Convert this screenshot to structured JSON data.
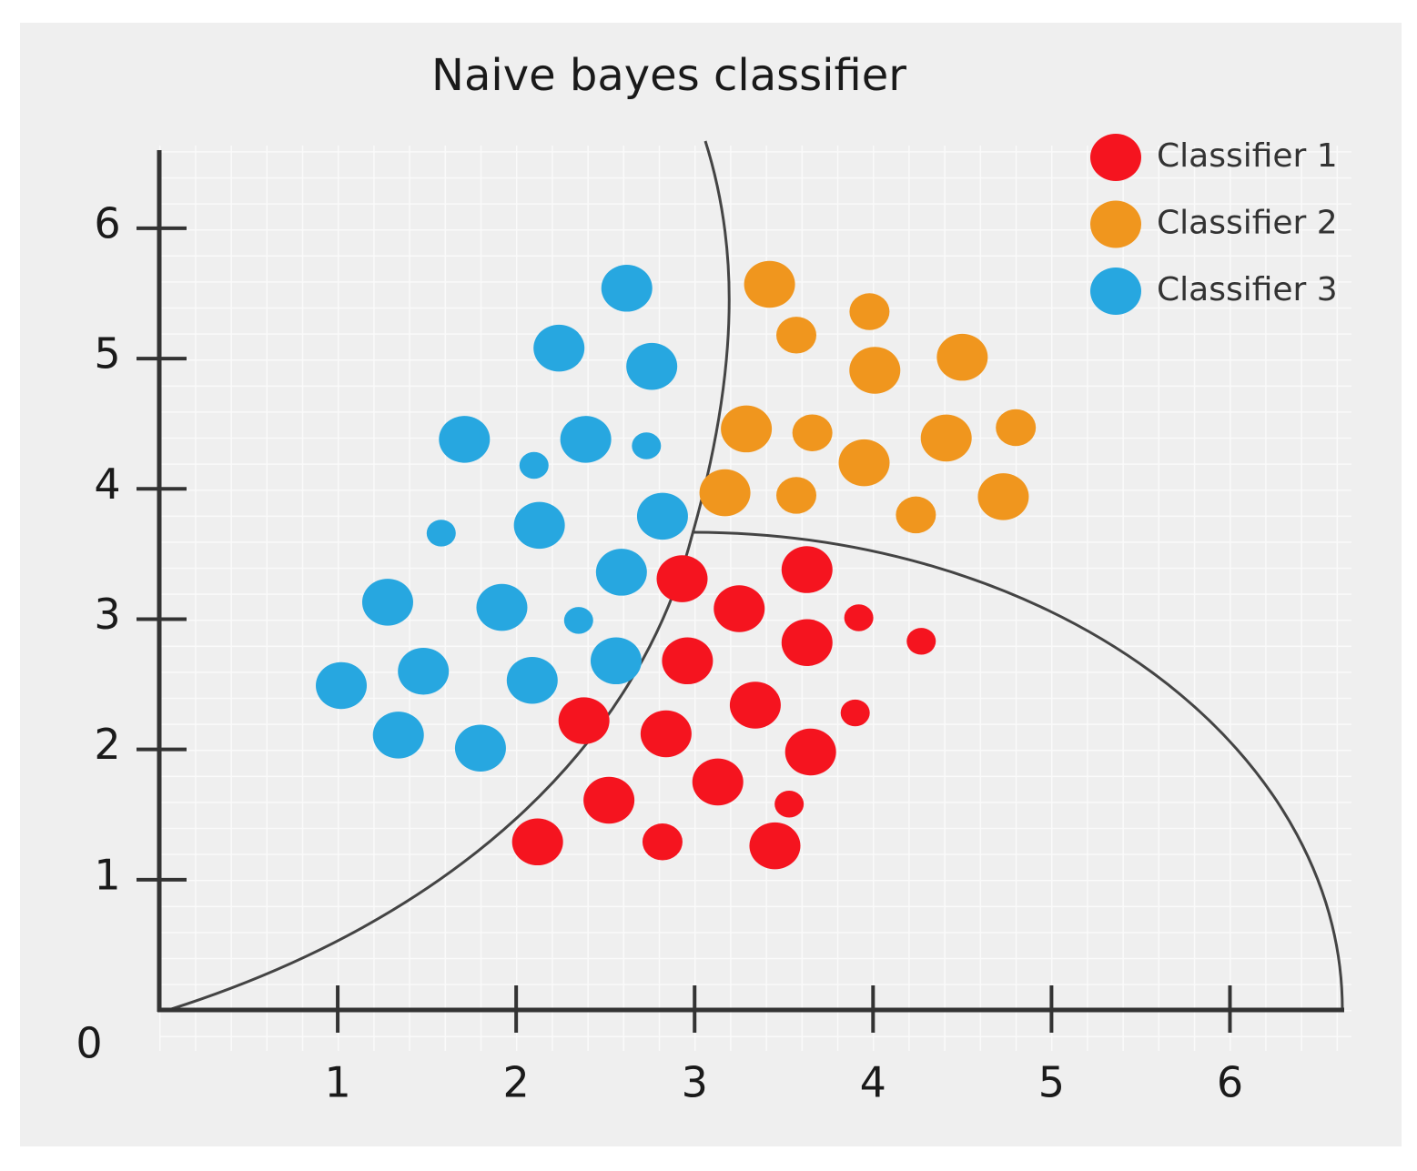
{
  "chart_data": {
    "type": "scatter",
    "title": "Naive bayes classifier",
    "xlim": [
      0,
      6.63
    ],
    "ylim": [
      0,
      6.6
    ],
    "xticks": [
      0,
      1,
      2,
      3,
      4,
      5,
      6
    ],
    "yticks": [
      1,
      2,
      3,
      4,
      5,
      6
    ],
    "grid": true,
    "legend": "top-right",
    "series": [
      {
        "name": "Classifier 1",
        "color": "#f5141f",
        "x": [
          2.93,
          3.63,
          3.25,
          3.92,
          3.63,
          4.27,
          2.96,
          3.34,
          3.9,
          2.38,
          2.84,
          3.65,
          3.13,
          2.52,
          3.53,
          2.12,
          2.82,
          3.45
        ],
        "values": [
          3.31,
          3.38,
          3.08,
          3.01,
          2.82,
          2.83,
          2.68,
          2.34,
          2.28,
          2.22,
          2.12,
          1.98,
          1.75,
          1.61,
          1.58,
          1.29,
          1.29,
          1.26
        ],
        "sizes": [
          3,
          3,
          3,
          1,
          3,
          1,
          3,
          3,
          1,
          3,
          3,
          3,
          3,
          3,
          1,
          3,
          2,
          3
        ]
      },
      {
        "name": "Classifier 2",
        "color": "#f0961e",
        "x": [
          3.42,
          3.98,
          3.57,
          4.01,
          4.5,
          3.29,
          3.66,
          4.41,
          4.8,
          3.95,
          3.17,
          3.57,
          4.24,
          4.73
        ],
        "values": [
          5.57,
          5.36,
          5.18,
          4.91,
          5.01,
          4.46,
          4.43,
          4.39,
          4.47,
          4.2,
          3.97,
          3.95,
          3.8,
          3.94
        ],
        "sizes": [
          3,
          2,
          2,
          3,
          3,
          3,
          2,
          3,
          2,
          3,
          3,
          2,
          2,
          3
        ]
      },
      {
        "name": "Classifier 3",
        "color": "#27a7e0",
        "x": [
          2.62,
          2.24,
          2.76,
          1.71,
          2.39,
          2.73,
          2.1,
          2.82,
          1.58,
          2.13,
          2.59,
          1.28,
          1.92,
          2.35,
          2.56,
          1.02,
          1.48,
          2.09,
          1.34,
          1.8
        ],
        "values": [
          5.54,
          5.08,
          4.94,
          4.38,
          4.38,
          4.33,
          4.18,
          3.79,
          3.66,
          3.72,
          3.36,
          3.13,
          3.09,
          2.99,
          2.68,
          2.49,
          2.6,
          2.53,
          2.11,
          2.01
        ],
        "sizes": [
          3,
          3,
          3,
          3,
          3,
          1,
          1,
          3,
          1,
          3,
          3,
          3,
          3,
          1,
          3,
          3,
          3,
          3,
          3,
          3
        ]
      }
    ]
  }
}
